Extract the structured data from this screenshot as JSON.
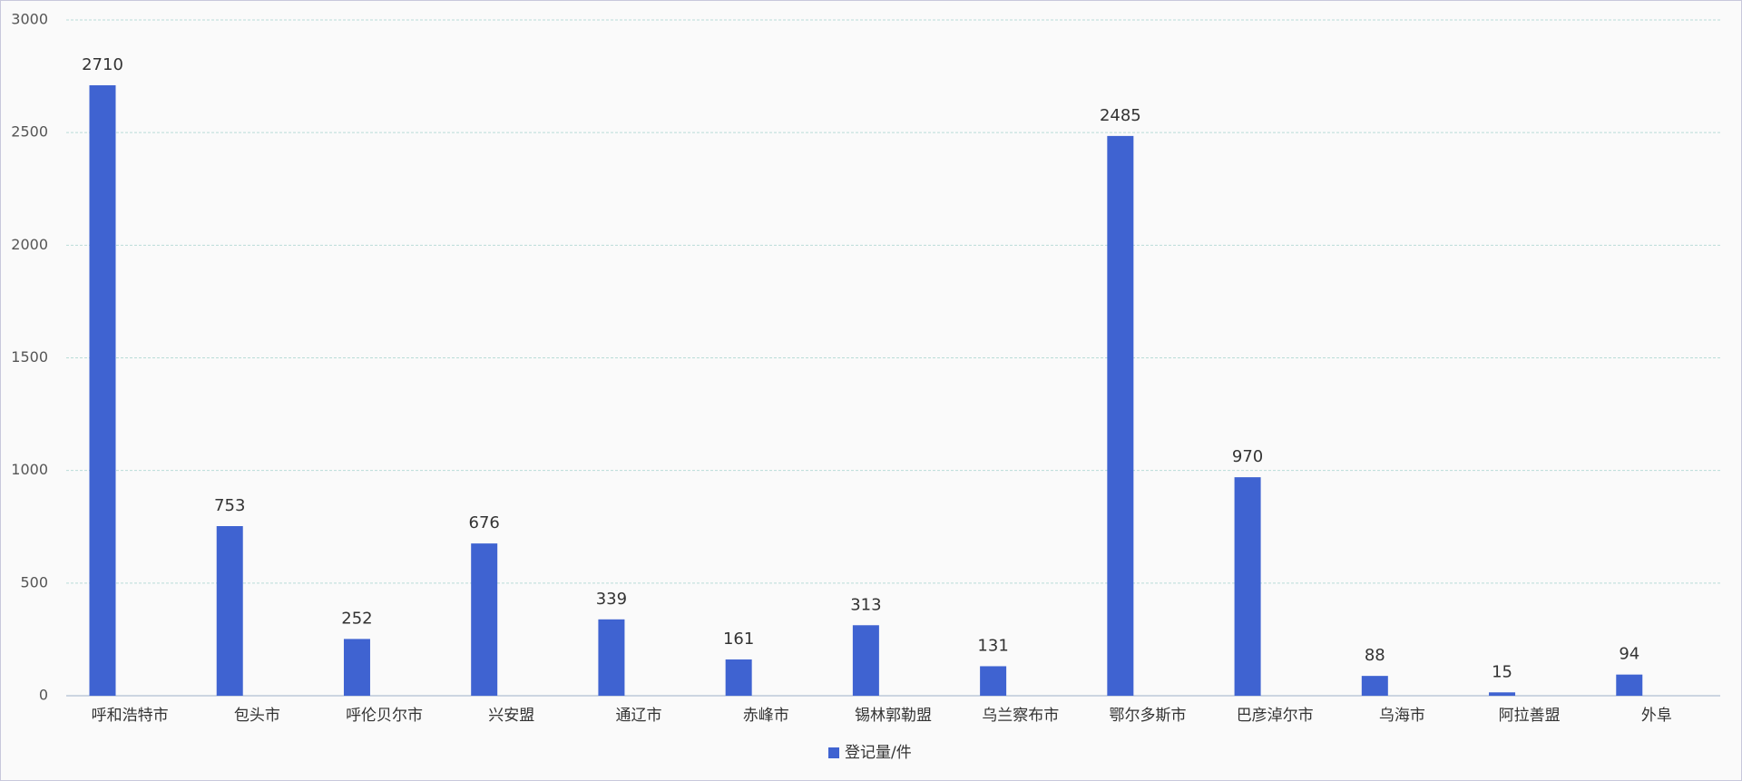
{
  "chart_data": {
    "type": "bar",
    "categories": [
      "呼和浩特市",
      "包头市",
      "呼伦贝尔市",
      "兴安盟",
      "通辽市",
      "赤峰市",
      "锡林郭勒盟",
      "乌兰察布市",
      "鄂尔多斯市",
      "巴彦淖尔市",
      "乌海市",
      "阿拉善盟",
      "外阜"
    ],
    "series": [
      {
        "name": "登记量/件",
        "color": "#3f63d1",
        "values": [
          2710,
          753,
          252,
          676,
          339,
          161,
          313,
          131,
          2485,
          970,
          88,
          15,
          94
        ]
      }
    ],
    "ylim": [
      0,
      3000
    ],
    "yticks": [
      0,
      500,
      1000,
      1500,
      2000,
      2500,
      3000
    ],
    "grid": true,
    "legend": "bottom"
  }
}
